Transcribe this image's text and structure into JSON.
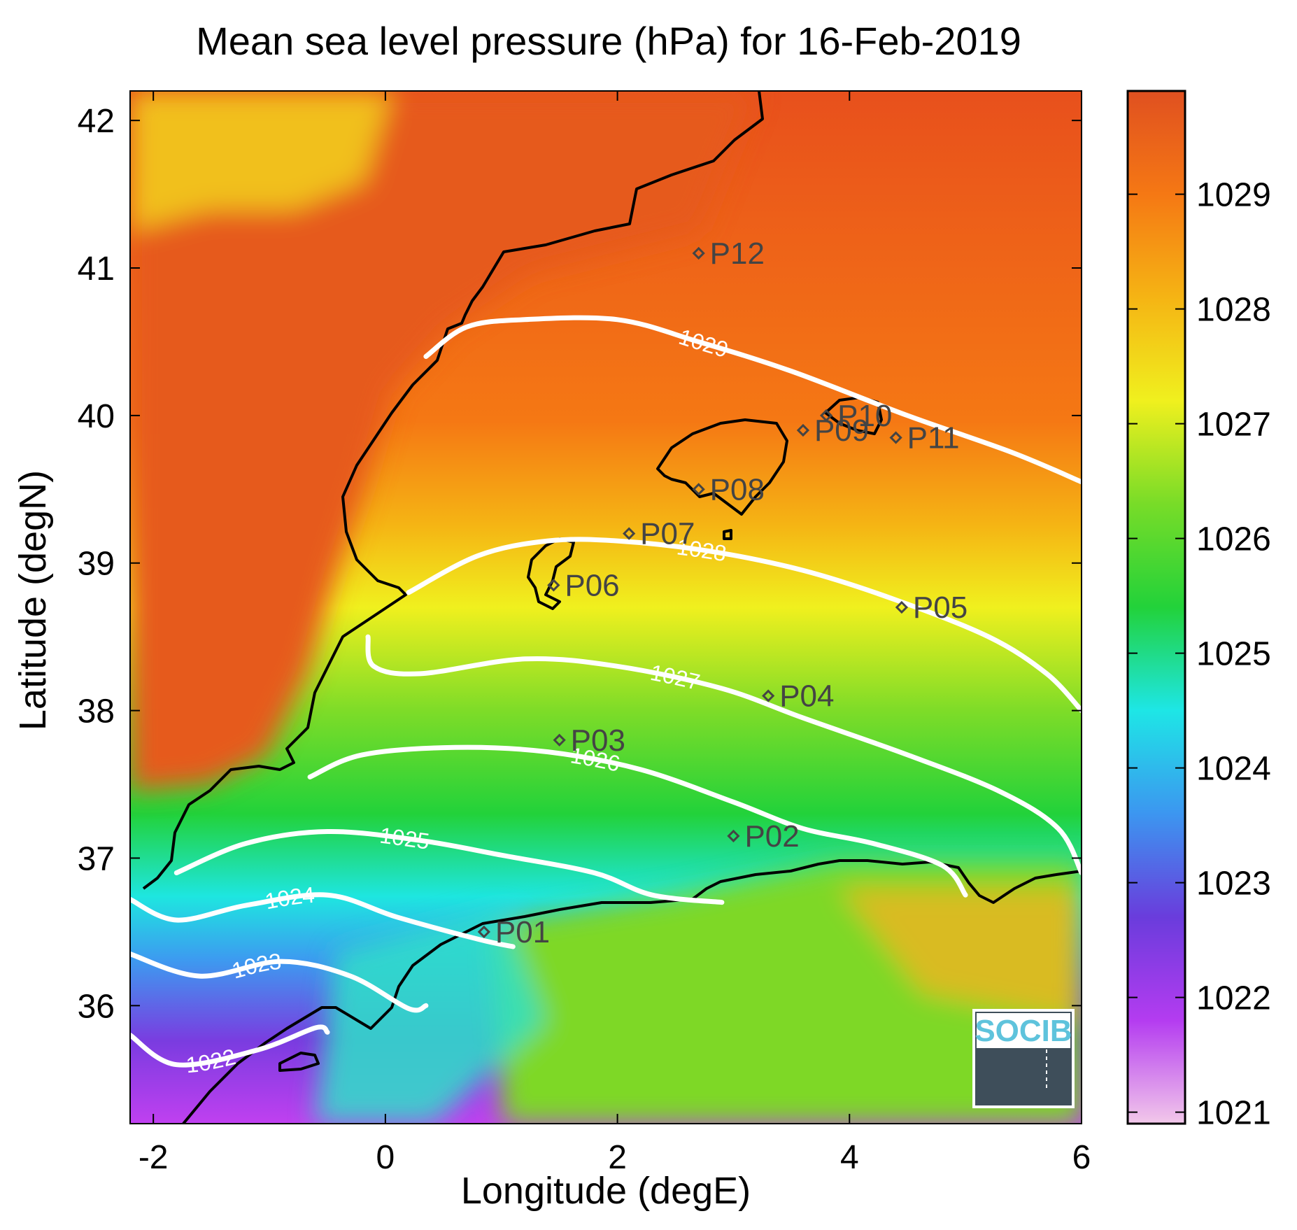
{
  "title": "Mean sea level pressure (hPa) for 16-Feb-2019",
  "colors": {
    "background": "#ffffff",
    "contour": "#ffffff",
    "coast": "#000000",
    "point_marker": "#444444",
    "logo_text": "#5ec3dc"
  },
  "chart_data": {
    "type": "heatmap",
    "title": "Mean sea level pressure (hPa) for 16-Feb-2019",
    "xlabel": "Longitude (degE)",
    "ylabel": "Latitude (degN)",
    "xlim": [
      -2.2,
      6
    ],
    "ylim": [
      35.2,
      42.2
    ],
    "x_ticks": [
      -2,
      0,
      2,
      4,
      6
    ],
    "y_ticks": [
      36,
      37,
      38,
      39,
      40,
      41,
      42
    ],
    "x_tick_labels": [
      "-2",
      "0",
      "2",
      "4",
      "6"
    ],
    "y_tick_labels": [
      "36",
      "37",
      "38",
      "39",
      "40",
      "41",
      "42"
    ],
    "colorbar": {
      "range": [
        1020.9,
        1029.9
      ],
      "ticks": [
        1021,
        1022,
        1023,
        1024,
        1025,
        1026,
        1027,
        1028,
        1029
      ],
      "tick_labels": [
        "1021",
        "1022",
        "1023",
        "1024",
        "1025",
        "1026",
        "1027",
        "1028",
        "1029"
      ],
      "colormap": [
        "#f2c8ea",
        "#b43cf0",
        "#6a3cdc",
        "#3c96f0",
        "#1ee6e6",
        "#22d23a",
        "#78dc28",
        "#f0f01e",
        "#f5b414",
        "#f57814",
        "#e05020"
      ]
    },
    "contours": [
      {
        "level": 1029,
        "label": "1029",
        "points": [
          [
            0.35,
            40.4
          ],
          [
            0.7,
            40.6
          ],
          [
            1.2,
            40.65
          ],
          [
            2.0,
            40.65
          ],
          [
            2.7,
            40.5
          ],
          [
            3.5,
            40.3
          ],
          [
            4.5,
            40.0
          ],
          [
            5.4,
            39.75
          ],
          [
            6.0,
            39.55
          ]
        ]
      },
      {
        "level": 1028,
        "label": "1028",
        "points": [
          [
            0.2,
            38.8
          ],
          [
            0.8,
            39.05
          ],
          [
            1.4,
            39.15
          ],
          [
            2.0,
            39.15
          ],
          [
            2.8,
            39.08
          ],
          [
            3.6,
            38.95
          ],
          [
            4.4,
            38.75
          ],
          [
            5.2,
            38.5
          ],
          [
            5.7,
            38.25
          ],
          [
            6.0,
            38.0
          ]
        ]
      },
      {
        "level": 1027,
        "label": "1027",
        "points": [
          [
            -0.15,
            38.5
          ],
          [
            -0.1,
            38.3
          ],
          [
            0.3,
            38.25
          ],
          [
            1.2,
            38.35
          ],
          [
            2.0,
            38.3
          ],
          [
            2.9,
            38.15
          ],
          [
            3.6,
            37.95
          ],
          [
            4.5,
            37.7
          ],
          [
            5.3,
            37.45
          ],
          [
            5.8,
            37.2
          ],
          [
            6.0,
            36.9
          ]
        ]
      },
      {
        "level": 1026,
        "label": "1026",
        "points": [
          [
            -0.65,
            37.55
          ],
          [
            -0.2,
            37.7
          ],
          [
            0.6,
            37.75
          ],
          [
            1.4,
            37.72
          ],
          [
            2.2,
            37.6
          ],
          [
            3.0,
            37.38
          ],
          [
            3.6,
            37.2
          ],
          [
            4.2,
            37.1
          ],
          [
            4.8,
            36.95
          ],
          [
            5.0,
            36.75
          ]
        ]
      },
      {
        "level": 1025,
        "label": "1025",
        "points": [
          [
            -1.8,
            36.9
          ],
          [
            -1.2,
            37.1
          ],
          [
            -0.5,
            37.18
          ],
          [
            0.3,
            37.12
          ],
          [
            1.0,
            37.02
          ],
          [
            1.8,
            36.9
          ],
          [
            2.3,
            36.75
          ],
          [
            2.9,
            36.7
          ]
        ]
      },
      {
        "level": 1024,
        "label": "1024",
        "points": [
          [
            -2.2,
            36.72
          ],
          [
            -1.8,
            36.58
          ],
          [
            -1.2,
            36.68
          ],
          [
            -0.5,
            36.75
          ],
          [
            0.1,
            36.6
          ],
          [
            0.8,
            36.45
          ],
          [
            1.1,
            36.4
          ]
        ]
      },
      {
        "level": 1023,
        "label": "1023",
        "points": [
          [
            -2.2,
            36.35
          ],
          [
            -1.6,
            36.2
          ],
          [
            -0.9,
            36.3
          ],
          [
            -0.3,
            36.2
          ],
          [
            0.2,
            35.98
          ],
          [
            0.35,
            36.0
          ]
        ]
      },
      {
        "level": 1022,
        "label": "1022",
        "points": [
          [
            -2.2,
            35.8
          ],
          [
            -1.8,
            35.6
          ],
          [
            -1.1,
            35.7
          ],
          [
            -0.6,
            35.85
          ],
          [
            -0.5,
            35.82
          ]
        ]
      }
    ],
    "points": [
      {
        "name": "P01",
        "lon": 0.85,
        "lat": 36.5
      },
      {
        "name": "P02",
        "lon": 3.0,
        "lat": 37.15
      },
      {
        "name": "P03",
        "lon": 1.5,
        "lat": 37.8
      },
      {
        "name": "P04",
        "lon": 3.3,
        "lat": 38.1
      },
      {
        "name": "P05",
        "lon": 4.45,
        "lat": 38.7
      },
      {
        "name": "P06",
        "lon": 1.45,
        "lat": 38.85
      },
      {
        "name": "P07",
        "lon": 2.1,
        "lat": 39.2
      },
      {
        "name": "P08",
        "lon": 2.7,
        "lat": 39.5
      },
      {
        "name": "P09",
        "lon": 3.6,
        "lat": 39.9
      },
      {
        "name": "P10",
        "lon": 3.8,
        "lat": 40.0
      },
      {
        "name": "P11",
        "lon": 4.4,
        "lat": 39.85
      },
      {
        "name": "P12",
        "lon": 2.7,
        "lat": 41.1
      }
    ],
    "logo": {
      "text": "SOCIB"
    }
  }
}
